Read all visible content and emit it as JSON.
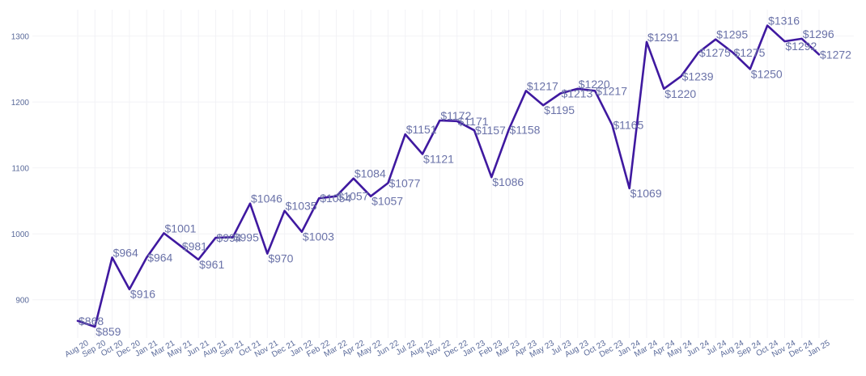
{
  "colors": {
    "line": "#3f19a0",
    "label": "#6a72a8",
    "tick": "#5a6a9a",
    "grid": "#f2f2f6"
  },
  "chart_data": {
    "type": "line",
    "title": "",
    "xlabel": "",
    "ylabel": "",
    "ylim": [
      842,
      1340
    ],
    "yticks": [
      900,
      1000,
      1100,
      1200,
      1300
    ],
    "grid": true,
    "legend": "none",
    "series": [
      {
        "points": [
          {
            "x": "Aug 20",
            "y": 868,
            "label": "$868"
          },
          {
            "x": "Sep 20",
            "y": 859,
            "label": "$859"
          },
          {
            "x": "Oct 20",
            "y": 964,
            "label": "$964"
          },
          {
            "x": "Dec 20",
            "y": 916,
            "label": "$916"
          },
          {
            "x": "Jan 21",
            "y": 964,
            "label": "$964"
          },
          {
            "x": "Mar 21",
            "y": 1001,
            "label": "$1001"
          },
          {
            "x": "May 21",
            "y": 981,
            "label": "$981"
          },
          {
            "x": "Jun 21",
            "y": 961,
            "label": "$961"
          },
          {
            "x": "Aug 21",
            "y": 994,
            "label": "$994"
          },
          {
            "x": "Sep 21",
            "y": 995,
            "label": "$995"
          },
          {
            "x": "Oct 21",
            "y": 1046,
            "label": "$1046"
          },
          {
            "x": "Nov 21",
            "y": 970,
            "label": "$970"
          },
          {
            "x": "Dec 21",
            "y": 1035,
            "label": "$1035"
          },
          {
            "x": "Jan 22",
            "y": 1003,
            "label": "$1003"
          },
          {
            "x": "Feb 22",
            "y": 1054,
            "label": "$1054"
          },
          {
            "x": "Mar 22",
            "y": 1057,
            "label": "$1057"
          },
          {
            "x": "Apr 22",
            "y": 1084,
            "label": "$1084"
          },
          {
            "x": "May 22",
            "y": 1057,
            "label": "$1057"
          },
          {
            "x": "Jun 22",
            "y": 1077,
            "label": "$1077"
          },
          {
            "x": "Jul 22",
            "y": 1151,
            "label": "$1151"
          },
          {
            "x": "Aug 22",
            "y": 1121,
            "label": "$1121"
          },
          {
            "x": "Nov 22",
            "y": 1172,
            "label": "$1172"
          },
          {
            "x": "Dec 22",
            "y": 1171,
            "label": "$1171"
          },
          {
            "x": "Jan 23",
            "y": 1157,
            "label": "$1157"
          },
          {
            "x": "Feb 23",
            "y": 1086,
            "label": "$1086"
          },
          {
            "x": "Mar 23",
            "y": 1158,
            "label": "$1158"
          },
          {
            "x": "Apr 23",
            "y": 1217,
            "label": "$1217"
          },
          {
            "x": "May 23",
            "y": 1195,
            "label": "$1195"
          },
          {
            "x": "Jul 23",
            "y": 1213,
            "label": "$1213"
          },
          {
            "x": "Aug 23",
            "y": 1220,
            "label": "$1220"
          },
          {
            "x": "Oct 23",
            "y": 1217,
            "label": "$1217"
          },
          {
            "x": "Dec 23",
            "y": 1165,
            "label": "$1165"
          },
          {
            "x": "Jan 24",
            "y": 1069,
            "label": "$1069"
          },
          {
            "x": "Mar 24",
            "y": 1291,
            "label": "$1291"
          },
          {
            "x": "Apr 24",
            "y": 1220,
            "label": "$1220"
          },
          {
            "x": "May 24",
            "y": 1239,
            "label": "$1239"
          },
          {
            "x": "Jun 24",
            "y": 1275,
            "label": "$1275"
          },
          {
            "x": "Jul 24",
            "y": 1295,
            "label": "$1295"
          },
          {
            "x": "Aug 24",
            "y": 1275,
            "label": "$1275"
          },
          {
            "x": "Sep 24",
            "y": 1250,
            "label": "$1250"
          },
          {
            "x": "Oct 24",
            "y": 1316,
            "label": "$1316"
          },
          {
            "x": "Nov 24",
            "y": 1292,
            "label": "$1292"
          },
          {
            "x": "Dec 24",
            "y": 1296,
            "label": "$1296"
          },
          {
            "x": "Jan 25",
            "y": 1272,
            "label": "$1272"
          }
        ]
      }
    ]
  }
}
